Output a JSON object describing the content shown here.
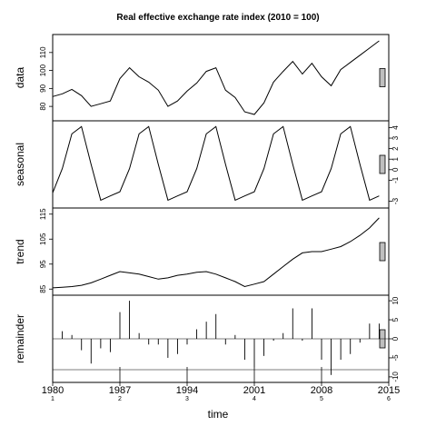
{
  "chart_data": {
    "type": "line",
    "title": "Real effective exchange rate index (2010 = 100)",
    "xlabel": "time",
    "x_ticks": [
      "1980",
      "1987",
      "1994",
      "2001",
      "2008",
      "2015"
    ],
    "x_subticks": [
      "1",
      "2",
      "3",
      "4",
      "5",
      "6"
    ],
    "x": [
      1980,
      1981,
      1982,
      1983,
      1984,
      1985,
      1986,
      1987,
      1988,
      1989,
      1990,
      1991,
      1992,
      1993,
      1994,
      1995,
      1996,
      1997,
      1998,
      1999,
      2000,
      2001,
      2002,
      2003,
      2004,
      2005,
      2006,
      2007,
      2008,
      2009,
      2010,
      2011,
      2012,
      2013,
      2014
    ],
    "panels": [
      {
        "name": "data",
        "ylabel": "data",
        "type": "line",
        "yticks": [
          80,
          90,
          100,
          110
        ],
        "ylim": [
          74,
          118
        ],
        "values": [
          85.5,
          87,
          89.5,
          86,
          80,
          81.5,
          83,
          95.5,
          101.5,
          96.5,
          93.5,
          89,
          80,
          83,
          88.5,
          93,
          99.5,
          101.5,
          89,
          85,
          77,
          75.5,
          82,
          93.5,
          99.5,
          105,
          98,
          104,
          96.5,
          91.5,
          100.5,
          104.5,
          108.5,
          112.5,
          116.5
        ]
      },
      {
        "name": "seasonal",
        "ylabel": "seasonal",
        "type": "line",
        "yticks": [
          -3,
          -1,
          0,
          1,
          2,
          3,
          4
        ],
        "ylim": [
          -3.3,
          4.3
        ],
        "values": [
          -2.2,
          0.1,
          3.4,
          4.1,
          0.5,
          -2.9,
          -2.5,
          -2.1,
          0.1,
          3.4,
          4.1,
          0.5,
          -2.9,
          -2.5,
          -2.1,
          0.1,
          3.4,
          4.1,
          0.5,
          -2.9,
          -2.5,
          -2.1,
          0.1,
          3.4,
          4.1,
          0.5,
          -2.9,
          -2.5,
          -2.1,
          0.1,
          3.4,
          4.1,
          0.5,
          -2.9,
          -2.5
        ]
      },
      {
        "name": "trend",
        "ylabel": "trend",
        "type": "line",
        "yticks": [
          85,
          95,
          105,
          115
        ],
        "ylim": [
          84,
          116
        ],
        "values": [
          85.5,
          85.7,
          86,
          86.5,
          87.5,
          89,
          90.5,
          92,
          91.5,
          91,
          90,
          89,
          89.5,
          90.5,
          91,
          91.7,
          92,
          91,
          89.5,
          88,
          86,
          87,
          88,
          91,
          94,
          97,
          99.5,
          100,
          100,
          101,
          102,
          104,
          106.5,
          109.5,
          113.5
        ]
      },
      {
        "name": "remainder",
        "ylabel": "remainder",
        "type": "bar",
        "yticks": [
          -10,
          -5,
          0,
          5,
          10
        ],
        "ylim": [
          -10.5,
          10.5
        ],
        "values": [
          3,
          2,
          1,
          -3,
          -6.5,
          -2.5,
          -3.5,
          7,
          10,
          1.5,
          -1.5,
          -1.5,
          -5,
          -4,
          -1.5,
          2.5,
          4.5,
          6.5,
          -1.5,
          1,
          -5.5,
          -7.5,
          -4.5,
          -0.5,
          1.5,
          8,
          -0.5,
          8,
          -5.5,
          -9.5,
          -5.5,
          -4,
          -1,
          4,
          4
        ]
      }
    ]
  }
}
